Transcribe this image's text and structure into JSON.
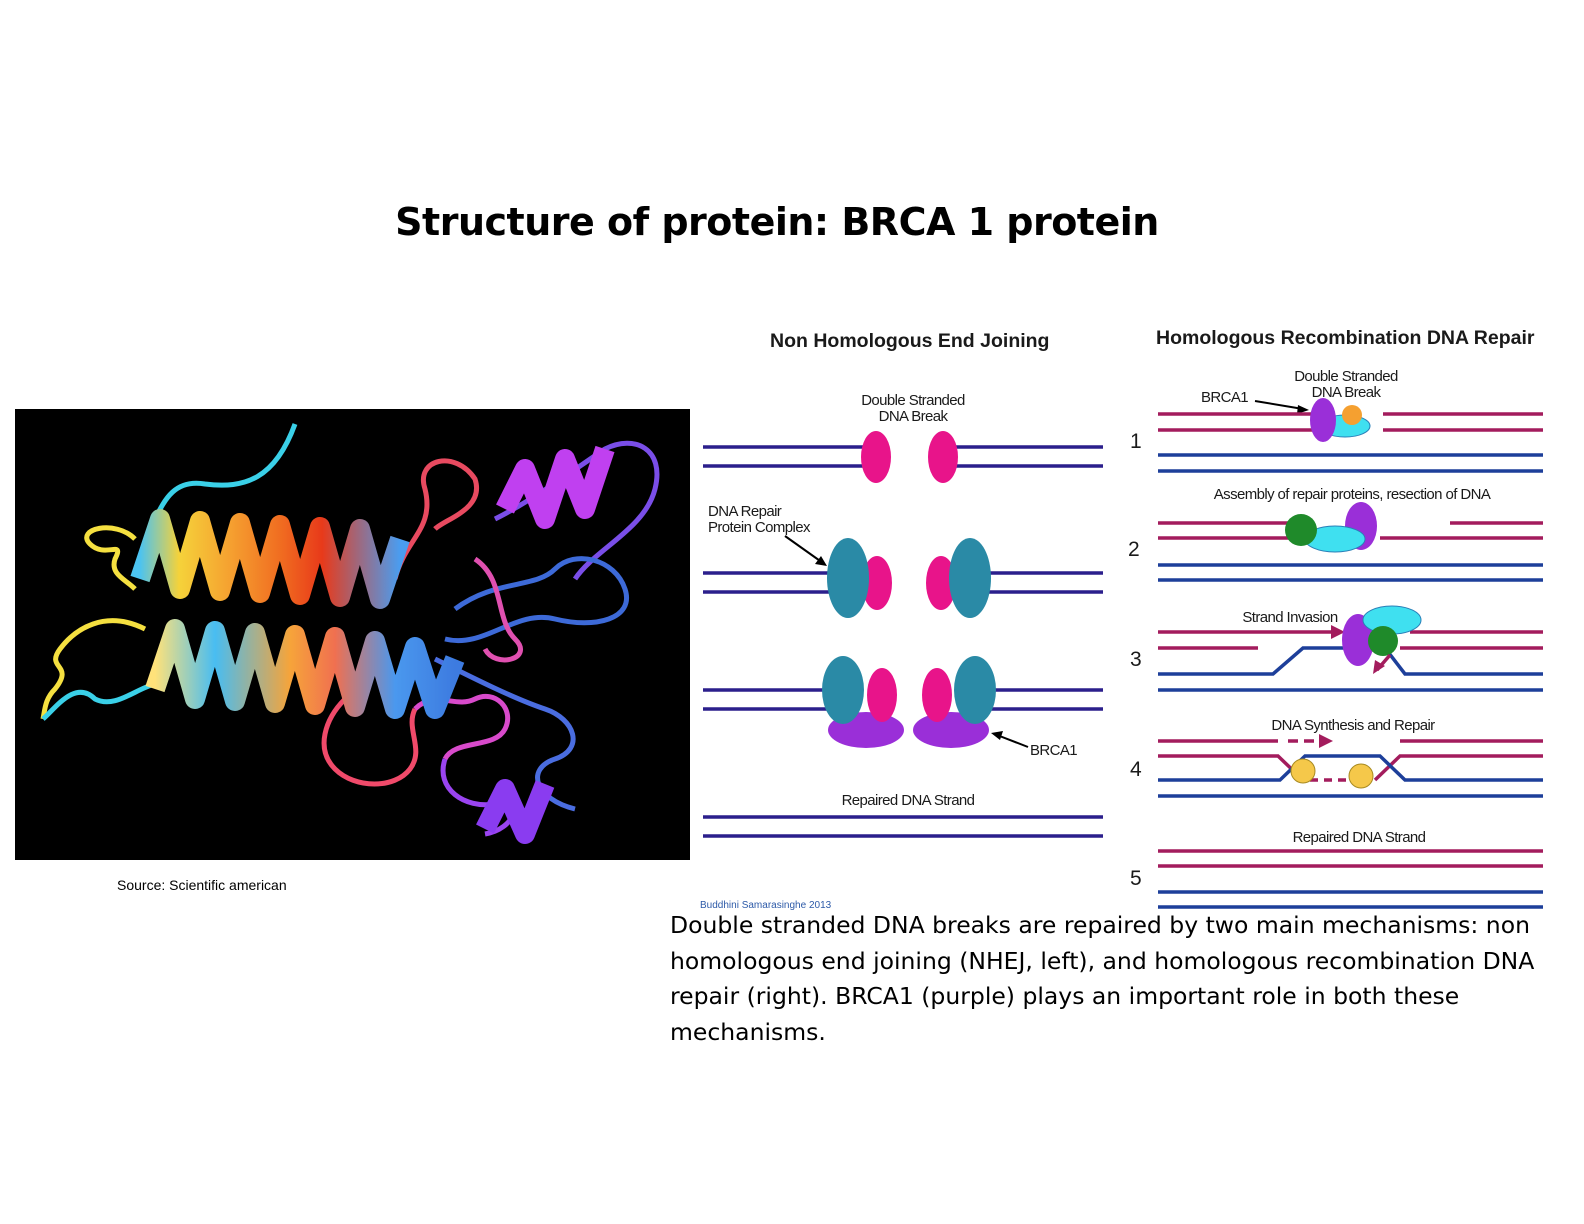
{
  "slide": {
    "title": "Structure of protein: BRCA 1 protein"
  },
  "image": {
    "source": "Source: Scientific american"
  },
  "nhej": {
    "heading": "Non Homologous End Joining",
    "label_break_1": "Double Stranded",
    "label_break_2": "DNA Break",
    "label_complex_1": "DNA Repair",
    "label_complex_2": "Protein Complex",
    "label_brca1": "BRCA1",
    "label_repaired": "Repaired DNA Strand"
  },
  "hr": {
    "heading": "Homologous Recombination DNA Repair",
    "label_break_1": "Double Stranded",
    "label_break_2": "DNA Break",
    "label_brca1": "BRCA1",
    "label_assembly": "Assembly of repair proteins, resection of DNA",
    "label_invasion": "Strand Invasion",
    "label_synthesis": "DNA Synthesis and Repair",
    "label_repaired": "Repaired DNA Strand",
    "steps": [
      "1",
      "2",
      "3",
      "4",
      "5"
    ]
  },
  "credit": "Buddhini Samarasinghe 2013",
  "caption": "Double stranded DNA breaks are repaired by two main mechanisms: non homologous end joining (NHEJ, left), and homologous recombination DNA repair (right). BRCA1 (purple) plays an important role in both these mechanisms.",
  "colors": {
    "nhej_dna": "#2b1f8c",
    "hr_red": "#a31c5d",
    "hr_blue": "#1d3f9a",
    "break_pink": "#e8148a",
    "complex_teal": "#2a8aa6",
    "brca1_purple": "#9a2fd8"
  }
}
